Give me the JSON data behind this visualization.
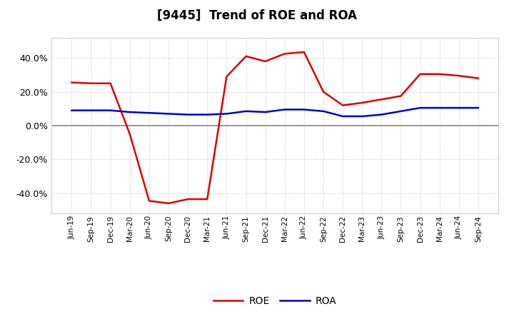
{
  "title": "[9445]  Trend of ROE and ROA",
  "x_labels": [
    "Jun-19",
    "Sep-19",
    "Dec-19",
    "Mar-20",
    "Jun-20",
    "Sep-20",
    "Dec-20",
    "Mar-21",
    "Jun-21",
    "Sep-21",
    "Dec-21",
    "Mar-22",
    "Jun-22",
    "Sep-22",
    "Dec-22",
    "Mar-23",
    "Jun-23",
    "Sep-23",
    "Dec-23",
    "Mar-24",
    "Jun-24",
    "Sep-24"
  ],
  "roe": [
    25.5,
    25.0,
    25.0,
    -5.0,
    -44.5,
    -46.0,
    -43.5,
    -43.5,
    29.0,
    41.0,
    38.0,
    42.5,
    43.5,
    20.0,
    12.0,
    13.5,
    15.5,
    17.5,
    30.5,
    30.5,
    29.5,
    28.0
  ],
  "roa": [
    9.0,
    9.0,
    9.0,
    8.0,
    7.5,
    7.0,
    6.5,
    6.5,
    7.0,
    8.5,
    8.0,
    9.5,
    9.5,
    8.5,
    5.5,
    5.5,
    6.5,
    8.5,
    10.5,
    10.5,
    10.5,
    10.5
  ],
  "roe_color": "#dd0000",
  "roa_color": "#0000cc",
  "background_color": "#ffffff",
  "plot_bg_color": "#ffffff",
  "grid_color": "#bbbbbb",
  "ylim": [
    -52,
    52
  ],
  "yticks": [
    -40,
    -20,
    0,
    20,
    40
  ],
  "zero_line_color": "#888888",
  "title_fontsize": 12,
  "line_width": 1.8
}
